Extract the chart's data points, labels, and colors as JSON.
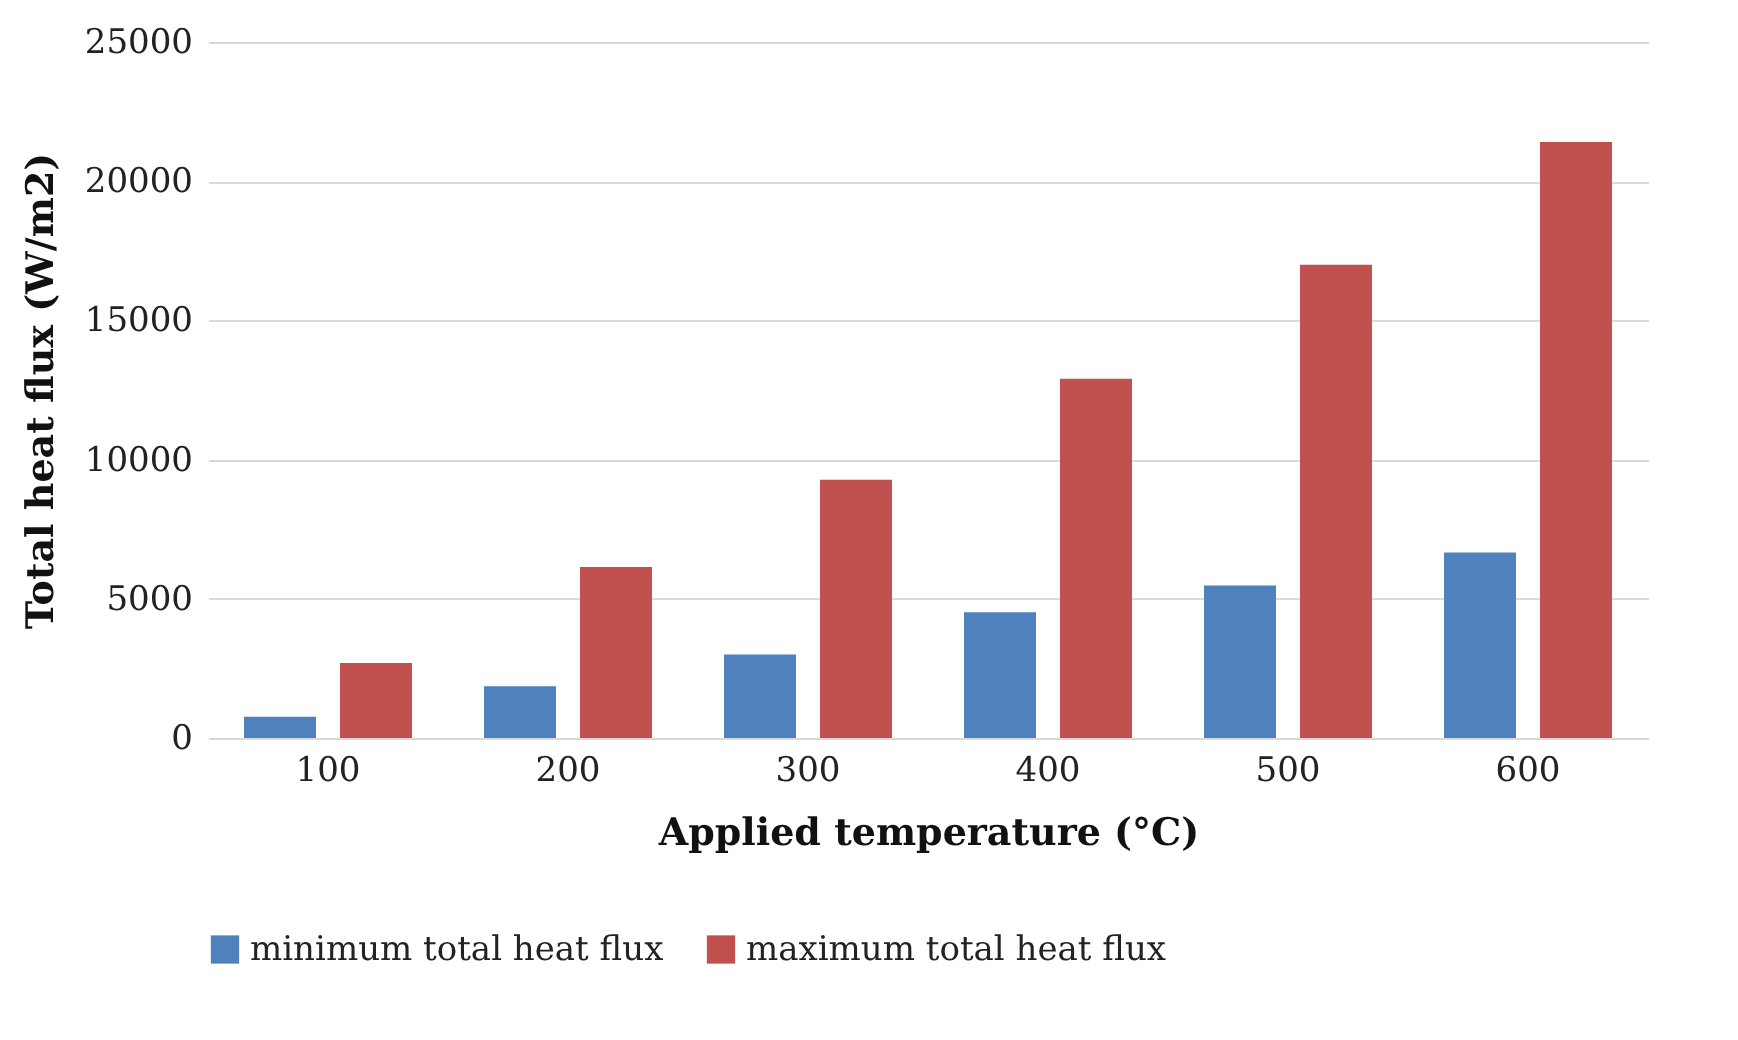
{
  "chart_data": {
    "type": "bar",
    "xlabel": "Applied temperature (°C)",
    "ylabel": "Total heat flux (W/m2)",
    "categories": [
      "100",
      "200",
      "300",
      "400",
      "500",
      "600"
    ],
    "series": [
      {
        "name": "minimum total heat flux",
        "color": "#4f81bd",
        "values": [
          760,
          1860,
          3000,
          4520,
          5480,
          6660
        ]
      },
      {
        "name": "maximum total heat flux",
        "color": "#c0504d",
        "values": [
          2690,
          6140,
          9280,
          12900,
          17000,
          21410
        ]
      }
    ],
    "ylim": [
      0,
      25000
    ],
    "yticks": [
      0,
      5000,
      10000,
      15000,
      20000,
      25000
    ],
    "grid": "y",
    "legend": "bottom"
  }
}
